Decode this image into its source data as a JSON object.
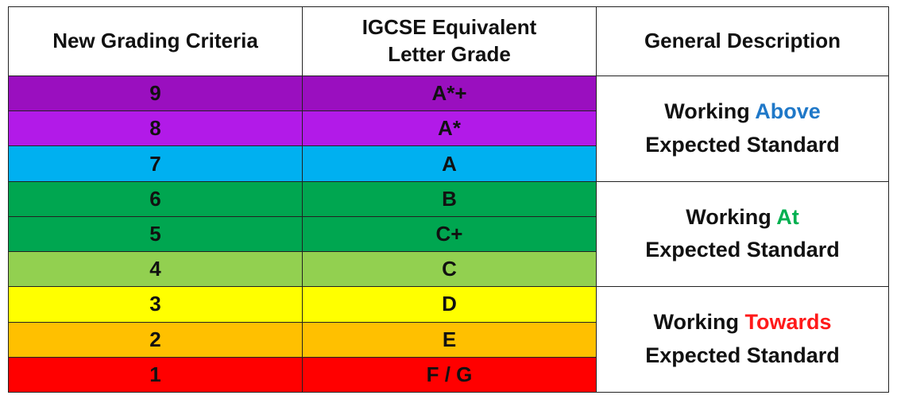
{
  "header": {
    "col1": "New Grading Criteria",
    "col2_line1": "IGCSE Equivalent",
    "col2_line2": "Letter Grade",
    "col3": "General Description"
  },
  "grades": [
    {
      "number": "9",
      "letter": "A*+",
      "color": "#9a0fbf"
    },
    {
      "number": "8",
      "letter": "A*",
      "color": "#b21ae8"
    },
    {
      "number": "7",
      "letter": "A",
      "color": "#00b0f0"
    },
    {
      "number": "6",
      "letter": "B",
      "color": "#00a650"
    },
    {
      "number": "5",
      "letter": "C+",
      "color": "#00a650"
    },
    {
      "number": "4",
      "letter": "C",
      "color": "#92d050"
    },
    {
      "number": "3",
      "letter": "D",
      "color": "#ffff00"
    },
    {
      "number": "2",
      "letter": "E",
      "color": "#ffc000"
    },
    {
      "number": "1",
      "letter": "F / G",
      "color": "#ff0000"
    }
  ],
  "descriptions": [
    {
      "prefix": "Working ",
      "highlight": "Above",
      "highlight_color": "#1f78c8",
      "suffix": "Expected Standard"
    },
    {
      "prefix": "Working ",
      "highlight": "At",
      "highlight_color": "#00b050",
      "suffix": "Expected Standard"
    },
    {
      "prefix": "Working ",
      "highlight": "Towards",
      "highlight_color": "#ff1a1a",
      "suffix": "Expected Standard"
    }
  ]
}
